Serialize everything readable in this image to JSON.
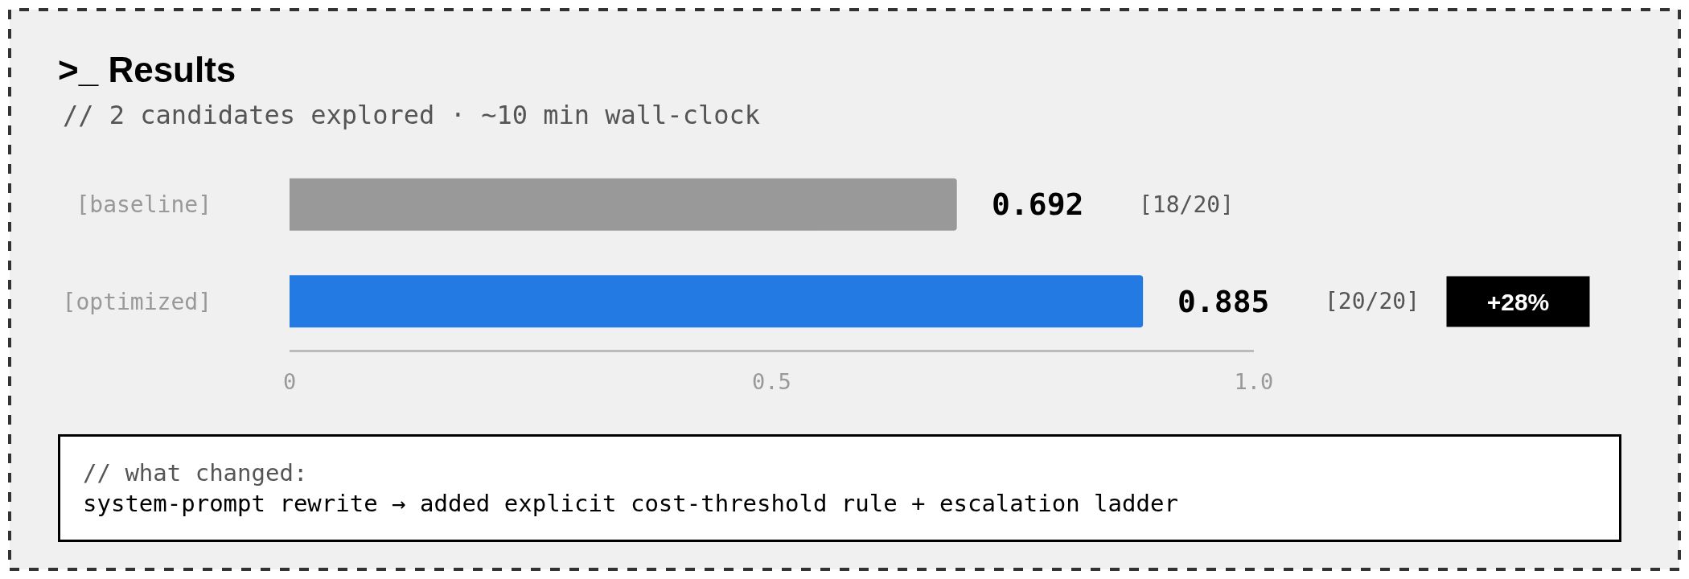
{
  "chart_data": {
    "type": "bar",
    "orientation": "horizontal",
    "title": ">_ Results",
    "subtitle": "// 2 candidates explored · ~10 min wall-clock",
    "categories": [
      "[baseline]",
      "[optimized]"
    ],
    "values": [
      0.692,
      0.885
    ],
    "colors": [
      "#999999",
      "#237ae2"
    ],
    "xlim": [
      0,
      1
    ],
    "xticks": [
      0,
      0.5,
      {
        "value": 1,
        "label": "1.0"
      }
    ],
    "data_labels": true,
    "annotations": [
      "[18/20]",
      "[20/20]",
      "+28%",
      "// what changed:",
      "system-prompt rewrite → added explicit cost-threshold rule + escalation ladder"
    ]
  }
}
